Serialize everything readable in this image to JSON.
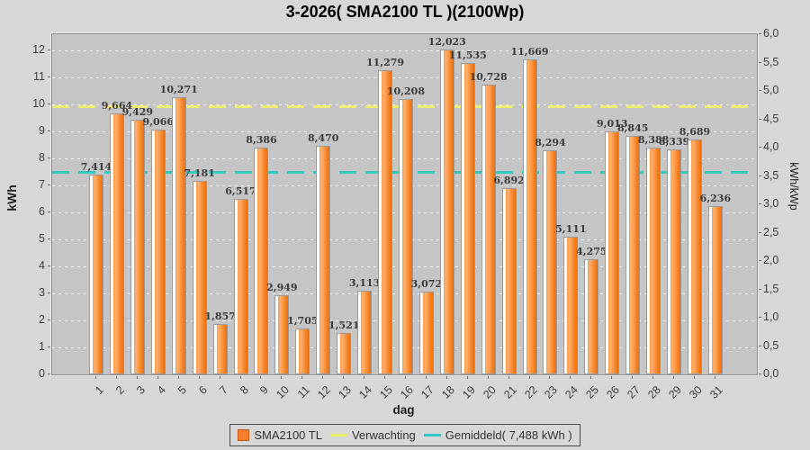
{
  "title": "3-2026( SMA2100 TL )(2100Wp)",
  "chart_data": {
    "type": "bar",
    "title": "3-2026( SMA2100 TL )(2100Wp)",
    "xlabel": "dag",
    "ylabel_left": "kWh",
    "ylabel_right": "kWh/kWp",
    "ylim_left": [
      0,
      12.6
    ],
    "ylim_right": [
      0,
      6.0
    ],
    "left_tick_step": 1,
    "left_tick_max": 12,
    "right_tick_step": 0.5,
    "grid": true,
    "legend_position": "bottom",
    "categories": [
      1,
      2,
      3,
      4,
      5,
      6,
      7,
      8,
      9,
      10,
      11,
      12,
      13,
      14,
      15,
      16,
      17,
      18,
      19,
      20,
      21,
      22,
      23,
      24,
      25,
      26,
      27,
      28,
      29,
      30,
      31
    ],
    "series": [
      {
        "name": "SMA2100 TL",
        "values": [
          7.414,
          9.664,
          9.429,
          9.066,
          10.271,
          7.181,
          1.857,
          6.517,
          8.386,
          2.949,
          1.705,
          8.47,
          1.521,
          3.113,
          11.279,
          10.208,
          3.072,
          12.023,
          11.535,
          10.728,
          6.892,
          11.669,
          8.294,
          5.111,
          4.275,
          9.013,
          8.845,
          8.388,
          8.339,
          8.689,
          6.236
        ]
      }
    ],
    "reference_lines": [
      {
        "name": "Verwachting",
        "value": 9.93,
        "color": "#eded74",
        "style": "dashed"
      },
      {
        "name": "Gemiddeld",
        "value": 7.488,
        "color": "#35c9bd",
        "style": "dashed"
      }
    ]
  },
  "legend": {
    "series_label": "SMA2100 TL",
    "verwachting_label": "Verwachting",
    "gemiddeld_label": "Gemiddeld( 7,488 kWh )"
  },
  "colors": {
    "bar_main": "#f78122",
    "bar_light": "#ffb170",
    "bar_border": "#9b9b9b",
    "plot_background": "#c5c5c6",
    "page_background": "#d7d7d7",
    "verwachting_line": "#eded74",
    "gemiddeld_line": "#35c9bd",
    "gridline": "#ffffff"
  }
}
